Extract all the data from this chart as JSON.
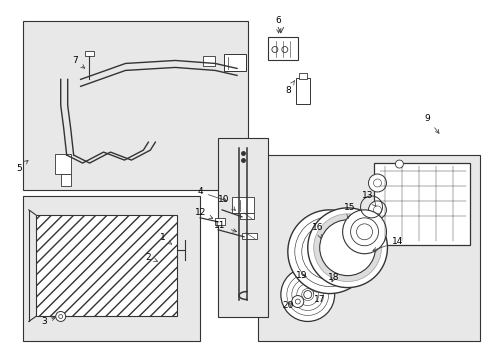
{
  "bg_color": "#ffffff",
  "line_color": "#333333",
  "shaded_bg": "#e8e8e8",
  "label_fontsize": 6.5,
  "labels": [
    [
      163,
      238,
      172,
      245,
      "1"
    ],
    [
      148,
      258,
      158,
      262,
      "2"
    ],
    [
      43,
      322,
      58,
      317,
      "3"
    ],
    [
      200,
      192,
      230,
      202,
      "4"
    ],
    [
      18,
      168,
      30,
      158,
      "5"
    ],
    [
      278,
      20,
      279,
      36,
      "6"
    ],
    [
      74,
      60,
      87,
      70,
      "7"
    ],
    [
      288,
      90,
      295,
      80,
      "8"
    ],
    [
      428,
      118,
      442,
      136,
      "9"
    ],
    [
      224,
      200,
      238,
      213,
      "10"
    ],
    [
      220,
      226,
      240,
      233,
      "11"
    ],
    [
      200,
      213,
      216,
      220,
      "12"
    ],
    [
      368,
      196,
      377,
      207,
      "13"
    ],
    [
      398,
      242,
      370,
      252,
      "14"
    ],
    [
      350,
      208,
      348,
      222,
      "15"
    ],
    [
      318,
      228,
      322,
      242,
      "16"
    ],
    [
      320,
      300,
      313,
      290,
      "17"
    ],
    [
      334,
      278,
      332,
      283,
      "18"
    ],
    [
      302,
      276,
      310,
      278,
      "19"
    ],
    [
      288,
      306,
      296,
      302,
      "20"
    ]
  ]
}
